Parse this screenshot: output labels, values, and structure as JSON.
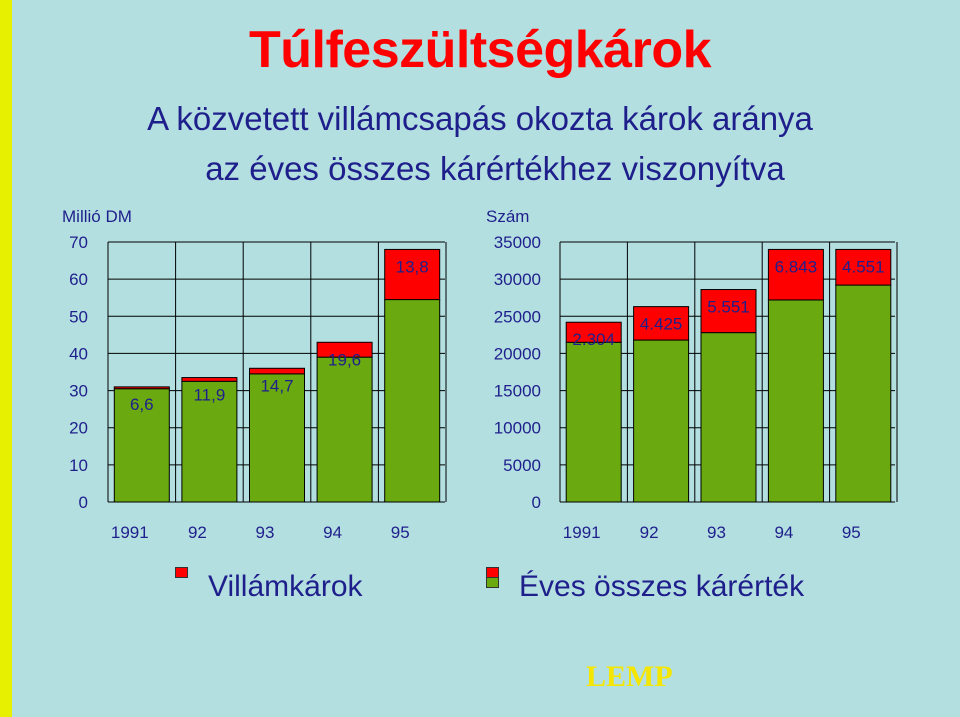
{
  "title": "Túlfeszültségkárok",
  "subtitle_line1": "A közvetett villámcsapás okozta károk aránya",
  "subtitle_line2": "az éves összes kárértékhez viszonyítva",
  "colors": {
    "red": "#ff0000",
    "green": "#6aaa10",
    "text": "#1f1f8c",
    "grid": "#000000"
  },
  "chart_data": [
    {
      "type": "bar",
      "stacked": true,
      "ylabel": "Millió DM",
      "ylim": [
        0,
        70
      ],
      "yticks": [
        0,
        10,
        20,
        30,
        40,
        50,
        60,
        70
      ],
      "categories": [
        "1991",
        "92",
        "93",
        "94",
        "95"
      ],
      "series": [
        {
          "name": "Éves összes kárérték",
          "color": "#6aaa10",
          "values": [
            30.5,
            32.5,
            34.5,
            39,
            54.5
          ]
        },
        {
          "name": "Villámkárok",
          "color": "#ff0000",
          "values": [
            0.5,
            1,
            1.5,
            4,
            13.5
          ]
        }
      ],
      "data_labels": [
        "6,6",
        "11,9",
        "14,7",
        "19,6",
        "13,8"
      ],
      "grid": true
    },
    {
      "type": "bar",
      "stacked": true,
      "ylabel": "Szám",
      "ylim": [
        0,
        35000
      ],
      "yticks": [
        0,
        5000,
        10000,
        15000,
        20000,
        25000,
        30000,
        35000
      ],
      "categories": [
        "1991",
        "92",
        "93",
        "94",
        "95"
      ],
      "series": [
        {
          "name": "Éves összes kárérték",
          "color": "#6aaa10",
          "values": [
            21500,
            21800,
            22800,
            27200,
            29200
          ]
        },
        {
          "name": "Villámkárok",
          "color": "#ff0000",
          "values": [
            2700,
            4500,
            5800,
            6800,
            4800
          ]
        }
      ],
      "data_labels": [
        "2.304",
        "4.425",
        "5.551",
        "6.843",
        "4.551"
      ],
      "grid": true
    }
  ],
  "legend": [
    {
      "label": "Villámkárok",
      "colors": [
        "#ff0000"
      ]
    },
    {
      "label": "Éves összes kárérték",
      "colors": [
        "#ff0000",
        "#6aaa10"
      ]
    }
  ],
  "logo_text": "LEMP"
}
